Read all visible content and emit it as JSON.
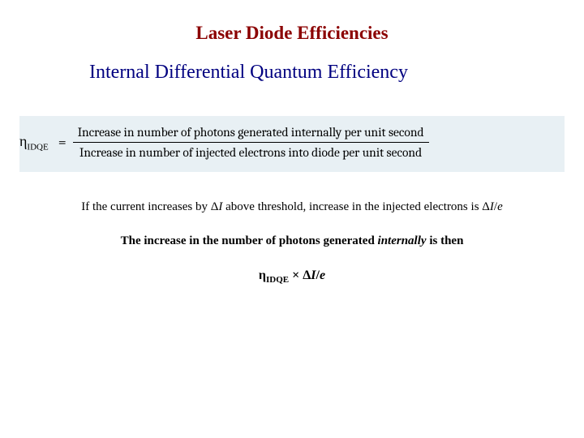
{
  "colors": {
    "title_color": "#8b0000",
    "subtitle_color": "#000080",
    "text_color": "#000000",
    "formula_bg": "#e8f0f4",
    "background": "#ffffff"
  },
  "title": "Laser Diode Efficiencies",
  "subtitle": "Internal Differential Quantum Efficiency",
  "formula": {
    "lhs_symbol": "η",
    "lhs_sub": "IDQE",
    "equals": "=",
    "numerator": "Increase in number of photons generated internally per unit second",
    "denominator": "Increase in number of injected electrons into diode per unit second"
  },
  "para1_a": "If the current increases by Δ",
  "para1_b": "I",
  "para1_c": " above threshold, increase in the injected electrons is Δ",
  "para1_d": "I",
  "para1_e": "/",
  "para1_f": "e",
  "para2_a": "The increase in the number of photons generated ",
  "para2_b": "internally",
  "para2_c": " is then",
  "final": {
    "eta": "η",
    "sub": "IDQE",
    "mid": " × Δ",
    "I": "I",
    "slash": "/",
    "e": "e"
  }
}
